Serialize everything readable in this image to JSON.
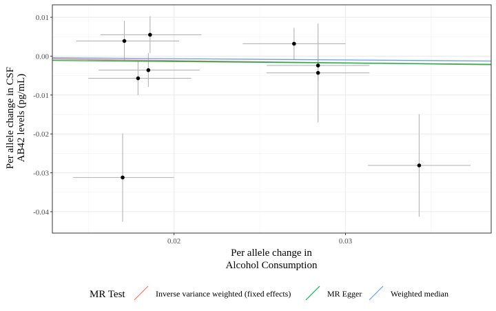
{
  "chart_data": {
    "type": "scatter",
    "xlabel": [
      "Per allele change in",
      "Alcohol Consumption"
    ],
    "ylabel": [
      "Per allele change in CSF",
      "AB42 levels (pg/mL)"
    ],
    "xlim": [
      0.0129,
      0.0385
    ],
    "ylim": [
      -0.0455,
      0.0132
    ],
    "x_ticks": [
      0.02,
      0.03
    ],
    "x_tick_labels": [
      "0.02",
      "0.03"
    ],
    "y_ticks": [
      -0.04,
      -0.03,
      -0.02,
      -0.01,
      0.0,
      0.01
    ],
    "y_tick_labels": [
      "-0.04",
      "-0.03",
      "-0.02",
      "-0.01",
      "0.00",
      "0.01"
    ],
    "grid": true,
    "points": [
      {
        "x": 0.0171,
        "y": 0.0039,
        "x_lo": 0.0143,
        "x_hi": 0.0203,
        "y_lo": -0.0013,
        "y_hi": 0.0091
      },
      {
        "x": 0.0186,
        "y": 0.0055,
        "x_lo": 0.0157,
        "x_hi": 0.0216,
        "y_lo": 0.0008,
        "y_hi": 0.0103
      },
      {
        "x": 0.0185,
        "y": -0.0036,
        "x_lo": 0.0156,
        "x_hi": 0.0215,
        "y_lo": -0.0079,
        "y_hi": 0.0008
      },
      {
        "x": 0.0179,
        "y": -0.0057,
        "x_lo": 0.015,
        "x_hi": 0.021,
        "y_lo": -0.01,
        "y_hi": -0.0014
      },
      {
        "x": 0.017,
        "y": -0.0312,
        "x_lo": 0.0141,
        "x_hi": 0.02,
        "y_lo": -0.0426,
        "y_hi": -0.0199
      },
      {
        "x": 0.027,
        "y": 0.0032,
        "x_lo": 0.024,
        "x_hi": 0.03,
        "y_lo": -0.0008,
        "y_hi": 0.0073
      },
      {
        "x": 0.0284,
        "y": -0.0024,
        "x_lo": 0.0254,
        "x_hi": 0.0314,
        "y_lo": -0.0065,
        "y_hi": 0.0017
      },
      {
        "x": 0.0284,
        "y": -0.0043,
        "x_lo": 0.0254,
        "x_hi": 0.0314,
        "y_lo": -0.017,
        "y_hi": 0.0084
      },
      {
        "x": 0.0343,
        "y": -0.0281,
        "x_lo": 0.0313,
        "x_hi": 0.0373,
        "y_lo": -0.0413,
        "y_hi": -0.0149
      }
    ],
    "lines": [
      {
        "name": "Inverse variance weighted (fixed effects)",
        "color": "#F8766D",
        "slope": -0.0576,
        "intercept": 0.0
      },
      {
        "name": "MR Egger",
        "color": "#00BA38",
        "slope": -0.0388,
        "intercept": -0.0006
      },
      {
        "name": "Weighted median",
        "color": "#619CFF",
        "slope": -0.0326,
        "intercept": 0.0
      }
    ],
    "legend": {
      "title": "MR Test",
      "position": "bottom",
      "entries": [
        {
          "label": "Inverse variance weighted (fixed effects)",
          "color": "#F8766D"
        },
        {
          "label": "MR Egger",
          "color": "#00BA38"
        },
        {
          "label": "Weighted median",
          "color": "#619CFF"
        }
      ]
    }
  }
}
